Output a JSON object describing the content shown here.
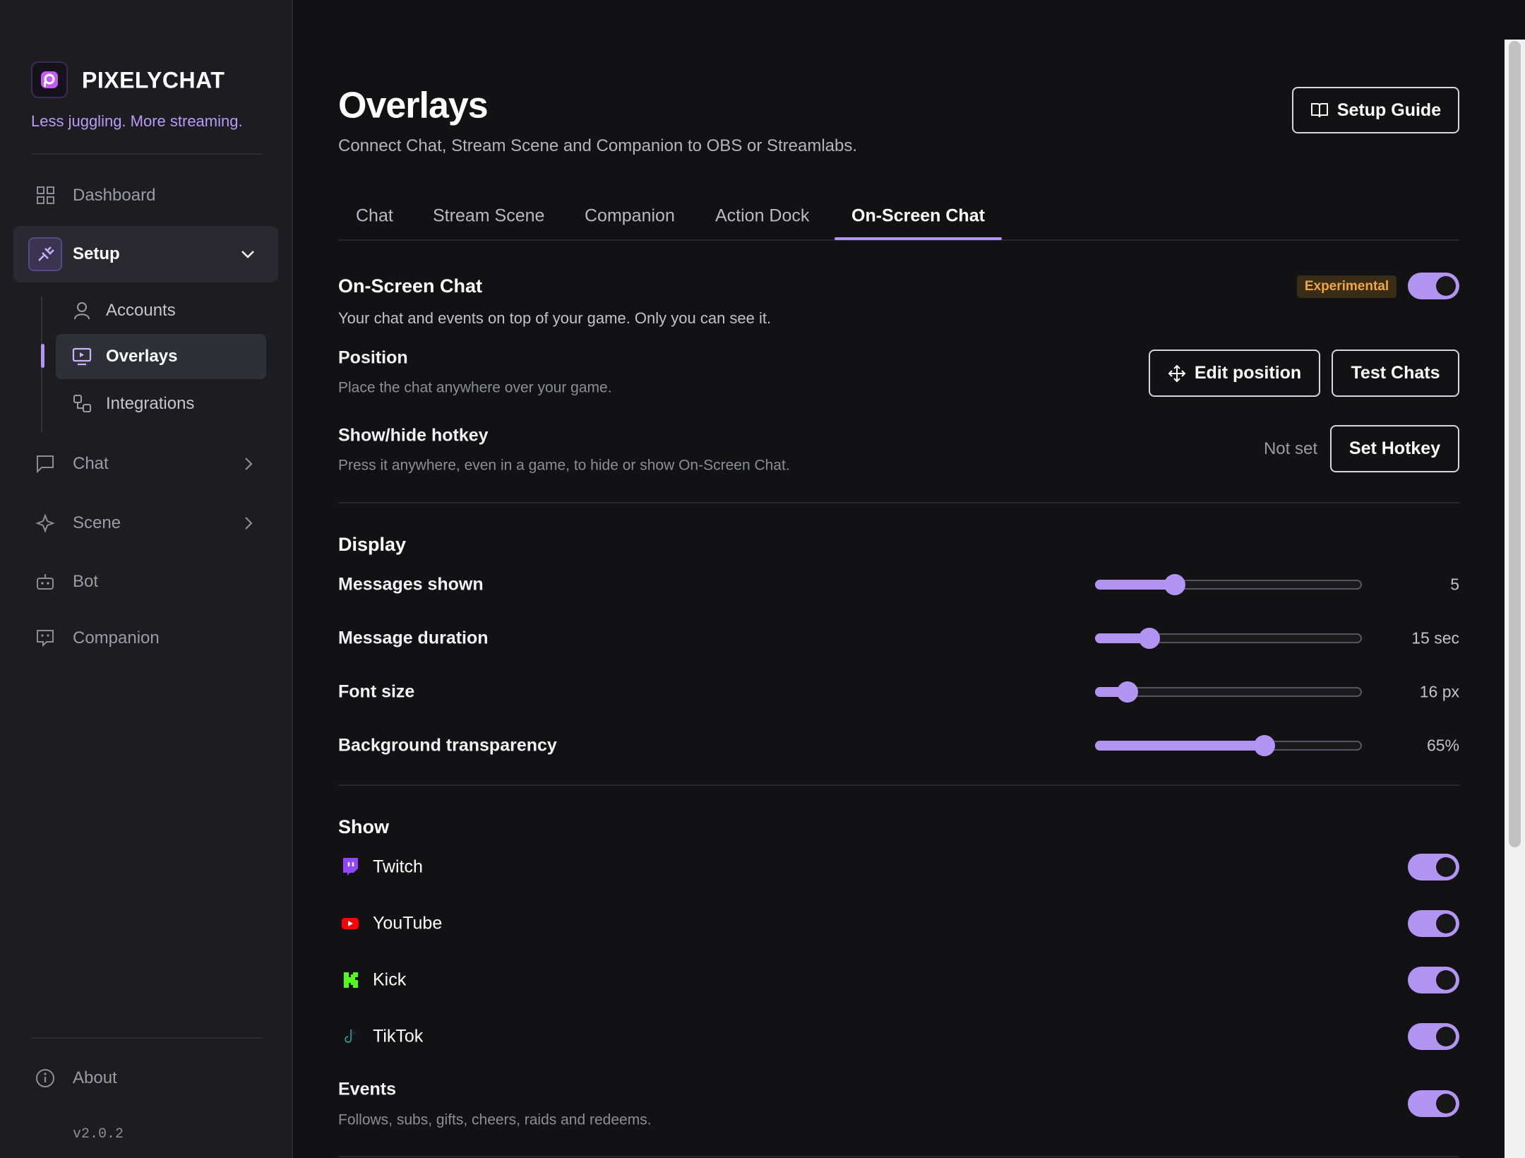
{
  "sidebar": {
    "brand": "PIXELYCHAT",
    "tagline": "Less juggling. More streaming.",
    "nav": [
      "Dashboard",
      "Setup",
      "Chat",
      "Scene",
      "Bot",
      "Companion"
    ],
    "setup_items": [
      "Accounts",
      "Overlays",
      "Integrations"
    ],
    "about": "About",
    "version": "v2.0.2"
  },
  "header": {
    "title": "Overlays",
    "subtitle": "Connect Chat, Stream Scene and Companion to OBS or Streamlabs.",
    "guide_button": "Setup Guide"
  },
  "tabs": [
    "Chat",
    "Stream Scene",
    "Companion",
    "Action Dock",
    "On-Screen Chat"
  ],
  "active_tab": 4,
  "on_screen_chat": {
    "title": "On-Screen Chat",
    "description": "Your chat and events on top of your game. Only you can see it.",
    "badge": "Experimental",
    "position": {
      "label": "Position",
      "description": "Place the chat anywhere over your game.",
      "buttons": [
        "Edit position",
        "Test Chats"
      ]
    },
    "hotkey": {
      "label": "Show/hide hotkey",
      "description": "Press it anywhere, even in a game, to hide or show On-Screen Chat.",
      "status": "Not set",
      "button": "Set Hotkey"
    }
  },
  "display": {
    "title": "Display",
    "rows": [
      {
        "label": "Messages shown",
        "value": "5"
      },
      {
        "label": "Message duration",
        "value": "15 sec"
      },
      {
        "label": "Font size",
        "value": "16 px"
      },
      {
        "label": "Background transparency",
        "value": "65%"
      }
    ]
  },
  "show": {
    "title": "Show",
    "platforms": [
      "Twitch",
      "YouTube",
      "Kick",
      "TikTok"
    ],
    "events": {
      "label": "Events",
      "description": "Follows, subs, gifts, cheers, raids and redeems."
    }
  }
}
